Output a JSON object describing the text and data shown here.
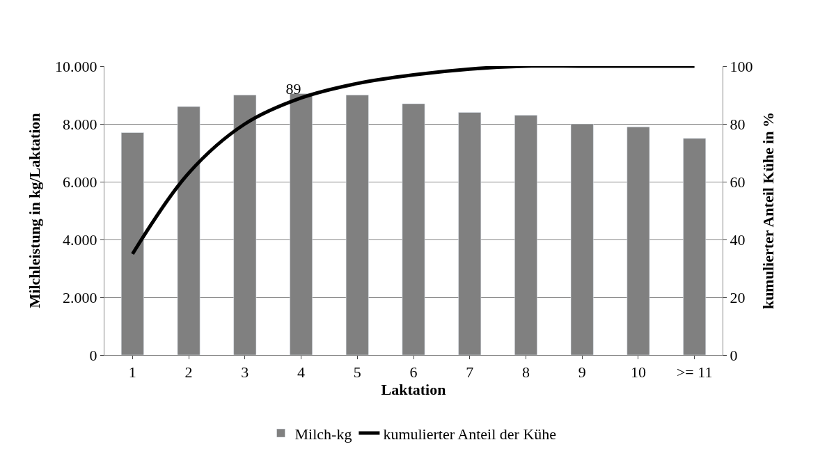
{
  "chart_data": {
    "type": "bar",
    "xlabel": "Laktation",
    "ylabel": "Milchleistung in kg/Laktation",
    "y2label": "kumulierter Anteil Kühe in %",
    "categories": [
      "1",
      "2",
      "3",
      "4",
      "5",
      "6",
      "7",
      "8",
      "9",
      "10",
      ">= 11"
    ],
    "series": [
      {
        "name": "Milch-kg",
        "color": "#808080",
        "values": [
          7700,
          8600,
          9000,
          9050,
          9000,
          8700,
          8400,
          8300,
          8000,
          7900,
          7500
        ]
      },
      {
        "name": "kumulierter Anteil der Kühe",
        "type": "line",
        "axis": "y2",
        "color": "#000000",
        "values": [
          35,
          63,
          80,
          89,
          94,
          97,
          99,
          100,
          100,
          100,
          100
        ],
        "value_labels": [
          null,
          null,
          null,
          "89",
          null,
          null,
          null,
          null,
          null,
          null,
          null
        ]
      }
    ],
    "ylim": [
      0,
      10000
    ],
    "yticks": [
      {
        "value": 0,
        "label": "0"
      },
      {
        "value": 2000,
        "label": "2.000"
      },
      {
        "value": 4000,
        "label": "4.000"
      },
      {
        "value": 6000,
        "label": "6.000"
      },
      {
        "value": 8000,
        "label": "8.000"
      },
      {
        "value": 10000,
        "label": "10.000"
      }
    ],
    "y2lim": [
      0,
      100
    ],
    "y2ticks": [
      0,
      20,
      40,
      60,
      80,
      100
    ],
    "grid": "y",
    "legend": "bottom",
    "marker": "none",
    "line_style": "solid"
  }
}
